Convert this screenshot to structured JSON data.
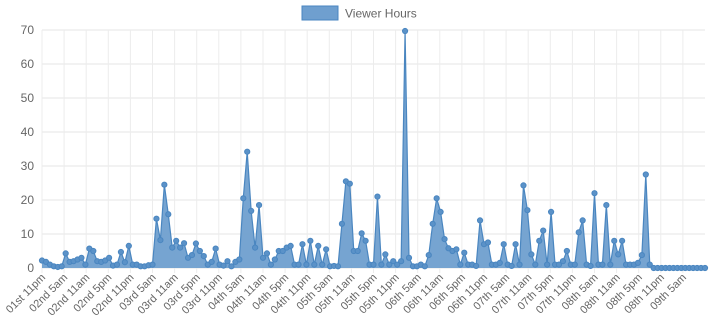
{
  "chart_data": {
    "type": "area",
    "legend": {
      "position": "top",
      "entries": [
        "Viewer Hours"
      ]
    },
    "series": [
      {
        "name": "Viewer Hours",
        "color": "#4a86c0",
        "values": [
          2.2,
          1.8,
          1.0,
          0.5,
          0.3,
          0.5,
          4.3,
          1.8,
          2.0,
          2.5,
          3.0,
          1.0,
          5.7,
          5.0,
          2.0,
          1.8,
          2.2,
          3.0,
          0.7,
          1.0,
          4.7,
          1.7,
          6.5,
          1.0,
          1.0,
          0.5,
          0.5,
          0.8,
          1.0,
          14.5,
          8.2,
          24.5,
          15.8,
          6.0,
          8.0,
          6.0,
          7.3,
          3.0,
          3.8,
          7.2,
          5.0,
          3.5,
          1.0,
          1.8,
          5.7,
          1.0,
          0.7,
          2.0,
          0.5,
          1.8,
          2.5,
          20.5,
          34.2,
          16.8,
          6.0,
          18.5,
          3.0,
          4.3,
          1.0,
          2.5,
          5.0,
          5.0,
          6.0,
          6.5,
          1.0,
          1.0,
          7.0,
          1.0,
          8.0,
          1.0,
          6.5,
          1.0,
          5.5,
          0.5,
          0.6,
          0.5,
          13.0,
          25.5,
          24.8,
          5.0,
          5.0,
          10.2,
          8.0,
          1.0,
          1.0,
          21.0,
          1.0,
          4.0,
          1.0,
          2.0,
          1.0,
          2.0,
          69.7,
          3.0,
          0.5,
          0.5,
          1.0,
          0.5,
          3.8,
          13.0,
          20.5,
          16.5,
          8.5,
          5.8,
          5.0,
          5.5,
          1.0,
          4.5,
          1.0,
          1.0,
          0.6,
          14.0,
          7.0,
          7.5,
          1.0,
          1.0,
          1.5,
          7.0,
          1.0,
          0.6,
          7.0,
          1.0,
          24.3,
          17.0,
          4.0,
          1.0,
          8.0,
          11.0,
          1.0,
          16.5,
          1.0,
          1.0,
          2.0,
          5.0,
          1.0,
          1.0,
          10.5,
          14.0,
          1.0,
          0.6,
          22.0,
          1.0,
          1.0,
          18.5,
          1.0,
          8.0,
          4.0,
          8.0,
          1.0,
          1.0,
          1.0,
          1.5,
          3.8,
          27.5,
          1.0,
          0.0,
          0.0,
          0.0,
          0.0,
          0.0,
          0.0,
          0.0,
          0.0,
          0.0,
          0.0,
          0.0,
          0.0,
          0.0,
          0.0
        ]
      }
    ],
    "x_tick_labels": [
      "01st 11pm",
      "02nd 5am",
      "02nd 11am",
      "02nd 5pm",
      "02nd 11pm",
      "03rd 5am",
      "03rd 11am",
      "03rd 5pm",
      "03rd 11pm",
      "04th 5am",
      "04th 11am",
      "04th 5pm",
      "04th 11pm",
      "05th 5am",
      "05th 11am",
      "05th 5pm",
      "05th 11pm",
      "06th 5am",
      "06th 11am",
      "06th 5pm",
      "06th 11pm",
      "07th 5am",
      "07th 11am",
      "07th 5pm",
      "07th 11pm",
      "08th 5am",
      "08th 11am",
      "08th 5pm",
      "08th 11pm",
      "09th 5am"
    ],
    "ylim": [
      0,
      70
    ],
    "y_ticks": [
      "0",
      "10",
      "20",
      "30",
      "40",
      "50",
      "60",
      "70"
    ],
    "grid": true,
    "title": "",
    "xlabel": "",
    "ylabel": ""
  }
}
